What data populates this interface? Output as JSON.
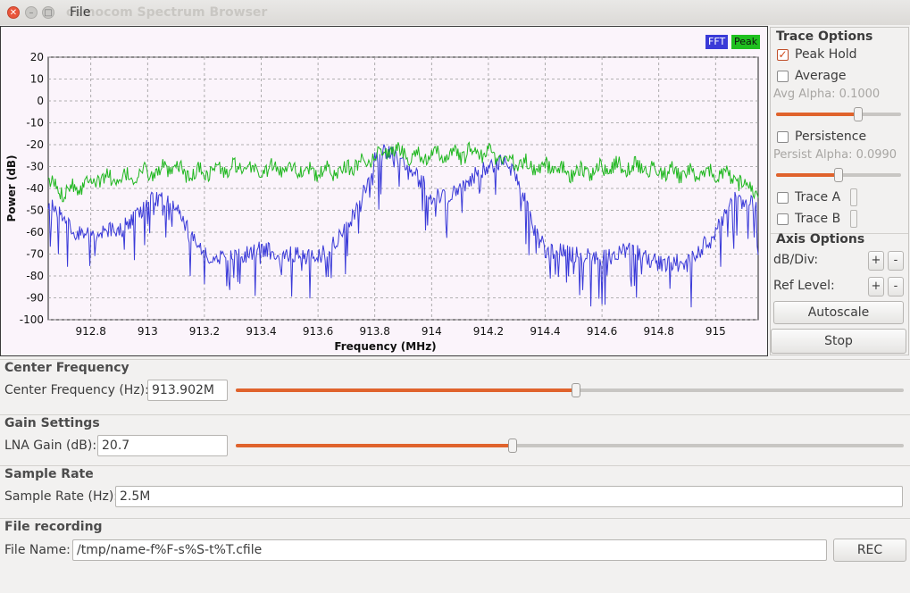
{
  "window": {
    "title": "osmocom Spectrum Browser",
    "menu_file": "File"
  },
  "colors": {
    "fft": "#3a3ad8",
    "peak": "#1fb71f",
    "plot_bg": "#fbf4fb",
    "accent": "#e0632c"
  },
  "icons": {
    "close": "close-icon",
    "minimize": "minimize-icon",
    "maximize": "maximize-icon",
    "checkmark": "check-icon"
  },
  "chart_data": {
    "type": "line",
    "xlabel": "Frequency (MHz)",
    "ylabel": "Power (dB)",
    "xlim": [
      912.65,
      915.15
    ],
    "ylim": [
      -100,
      20
    ],
    "x_ticks": [
      "912.8",
      "913",
      "913.2",
      "913.4",
      "913.6",
      "913.8",
      "914",
      "914.2",
      "914.4",
      "914.6",
      "914.8",
      "915"
    ],
    "y_ticks": [
      "20",
      "10",
      "0",
      "-10",
      "-20",
      "-30",
      "-40",
      "-50",
      "-60",
      "-70",
      "-80",
      "-90",
      "-100"
    ],
    "grid": true,
    "legend": "top-right",
    "series": [
      {
        "name": "FFT",
        "color": "#3a3ad8",
        "x": [
          912.65,
          912.7,
          912.75,
          912.8,
          912.85,
          912.9,
          912.95,
          913.0,
          913.05,
          913.1,
          913.15,
          913.2,
          913.3,
          913.4,
          913.5,
          913.6,
          913.65,
          913.7,
          913.75,
          913.78,
          913.8,
          913.85,
          913.9,
          913.95,
          914.0,
          914.05,
          914.1,
          914.15,
          914.2,
          914.25,
          914.28,
          914.32,
          914.36,
          914.4,
          914.5,
          914.6,
          914.7,
          914.8,
          914.9,
          914.95,
          915.0,
          915.05,
          915.1,
          915.15
        ],
        "values": [
          -48,
          -52,
          -60,
          -62,
          -60,
          -58,
          -54,
          -46,
          -44,
          -50,
          -60,
          -70,
          -72,
          -68,
          -70,
          -72,
          -66,
          -58,
          -46,
          -35,
          -26,
          -22,
          -28,
          -35,
          -42,
          -44,
          -40,
          -34,
          -30,
          -28,
          -32,
          -42,
          -58,
          -68,
          -70,
          -72,
          -68,
          -74,
          -74,
          -68,
          -58,
          -44,
          -46,
          -48
        ]
      },
      {
        "name": "Peak",
        "color": "#1fb71f",
        "x": [
          912.65,
          912.7,
          912.75,
          912.8,
          912.85,
          912.9,
          912.95,
          913.0,
          913.05,
          913.1,
          913.15,
          913.2,
          913.3,
          913.4,
          913.5,
          913.6,
          913.7,
          913.75,
          913.8,
          913.85,
          913.9,
          913.95,
          914.0,
          914.05,
          914.1,
          914.15,
          914.2,
          914.25,
          914.3,
          914.35,
          914.4,
          914.5,
          914.6,
          914.7,
          914.8,
          914.9,
          914.95,
          915.0,
          915.05,
          915.1,
          915.15
        ],
        "values": [
          -38,
          -41,
          -39,
          -36,
          -35,
          -37,
          -34,
          -33,
          -32,
          -31,
          -34,
          -32,
          -31,
          -32,
          -30,
          -33,
          -31,
          -28,
          -25,
          -22,
          -24,
          -25,
          -26,
          -24,
          -25,
          -23,
          -24,
          -26,
          -28,
          -30,
          -30,
          -33,
          -31,
          -30,
          -32,
          -33,
          -34,
          -33,
          -35,
          -38,
          -41
        ]
      }
    ]
  },
  "legend": {
    "fft_label": "FFT",
    "peak_label": "Peak"
  },
  "trace_options": {
    "title": "Trace Options",
    "peak_hold_label": "Peak Hold",
    "peak_hold_checked": true,
    "average_label": "Average",
    "average_checked": false,
    "avg_alpha_label": "Avg Alpha: 0.1000",
    "avg_alpha_value": 0.1,
    "persistence_label": "Persistence",
    "persistence_checked": false,
    "persist_alpha_label": "Persist Alpha: 0.0990",
    "persist_alpha_value": 0.099,
    "trace_a_label": "Trace A",
    "trace_b_label": "Trace B"
  },
  "axis_options": {
    "title": "Axis Options",
    "db_div_label": "dB/Div:",
    "ref_level_label": "Ref Level:",
    "plus": "+",
    "minus": "-",
    "autoscale_label": "Autoscale",
    "stop_label": "Stop"
  },
  "center_frequency": {
    "group_title": "Center Frequency",
    "label": "Center Frequency (Hz):",
    "value": "913.902M",
    "slider_fraction": 0.5
  },
  "gain_settings": {
    "group_title": "Gain Settings",
    "label": "LNA Gain (dB):",
    "value": "20.7",
    "slider_fraction": 0.41
  },
  "sample_rate": {
    "group_title": "Sample Rate",
    "label": "Sample Rate (Hz):",
    "value": "2.5M"
  },
  "file_recording": {
    "group_title": "File recording",
    "label": "File Name:",
    "value": "/tmp/name-f%F-s%S-t%T.cfile",
    "rec_label": "REC"
  }
}
